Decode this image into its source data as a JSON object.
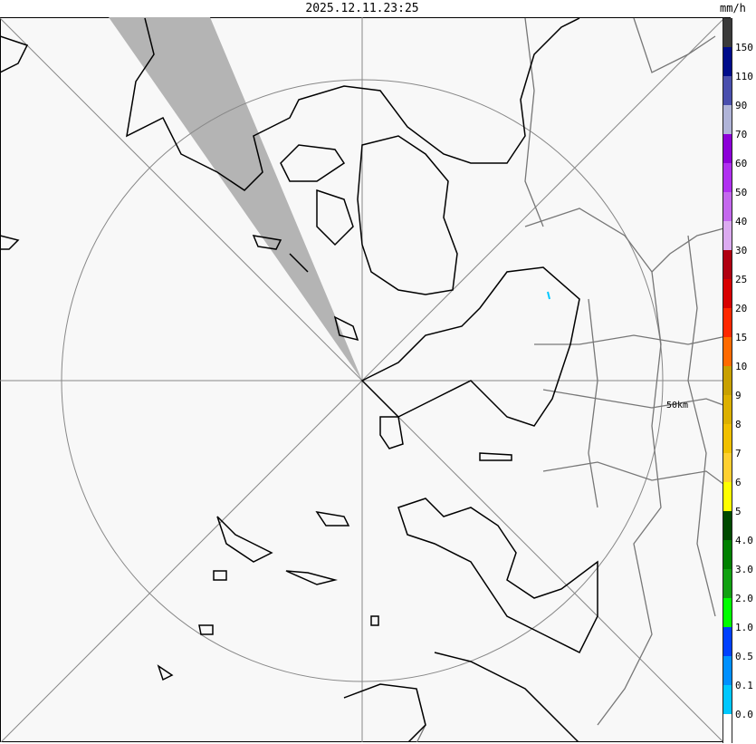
{
  "timestamp": "2025.12.11.23:25",
  "unit": "mm/h",
  "range_label": "50km",
  "legend": {
    "colors": [
      "#3a3a3a",
      "#000c8a",
      "#4a4fad",
      "#b0b4d8",
      "#8c00d8",
      "#b030f0",
      "#c468ee",
      "#dcaaf0",
      "#b00010",
      "#d80000",
      "#ff2800",
      "#ff6a00",
      "#c8a000",
      "#dcb000",
      "#f0c000",
      "#ffd030",
      "#ffff00",
      "#004a00",
      "#008000",
      "#10a010",
      "#00ff00",
      "#0040ff",
      "#0090ff",
      "#00c8ff",
      "#ffffff"
    ],
    "labels": [
      "150",
      "110",
      "90",
      "70",
      "60",
      "50",
      "40",
      "30",
      "25",
      "20",
      "15",
      "10",
      "9",
      "8",
      "7",
      "6",
      "5",
      "4.0",
      "3.0",
      "2.0",
      "1.0",
      "0.5",
      "0.1",
      "0.0"
    ]
  },
  "colors": {
    "blocked_sector": "#b4b4b4",
    "coastline": "#000000",
    "boundary": "#777777",
    "grid": "#888888"
  }
}
